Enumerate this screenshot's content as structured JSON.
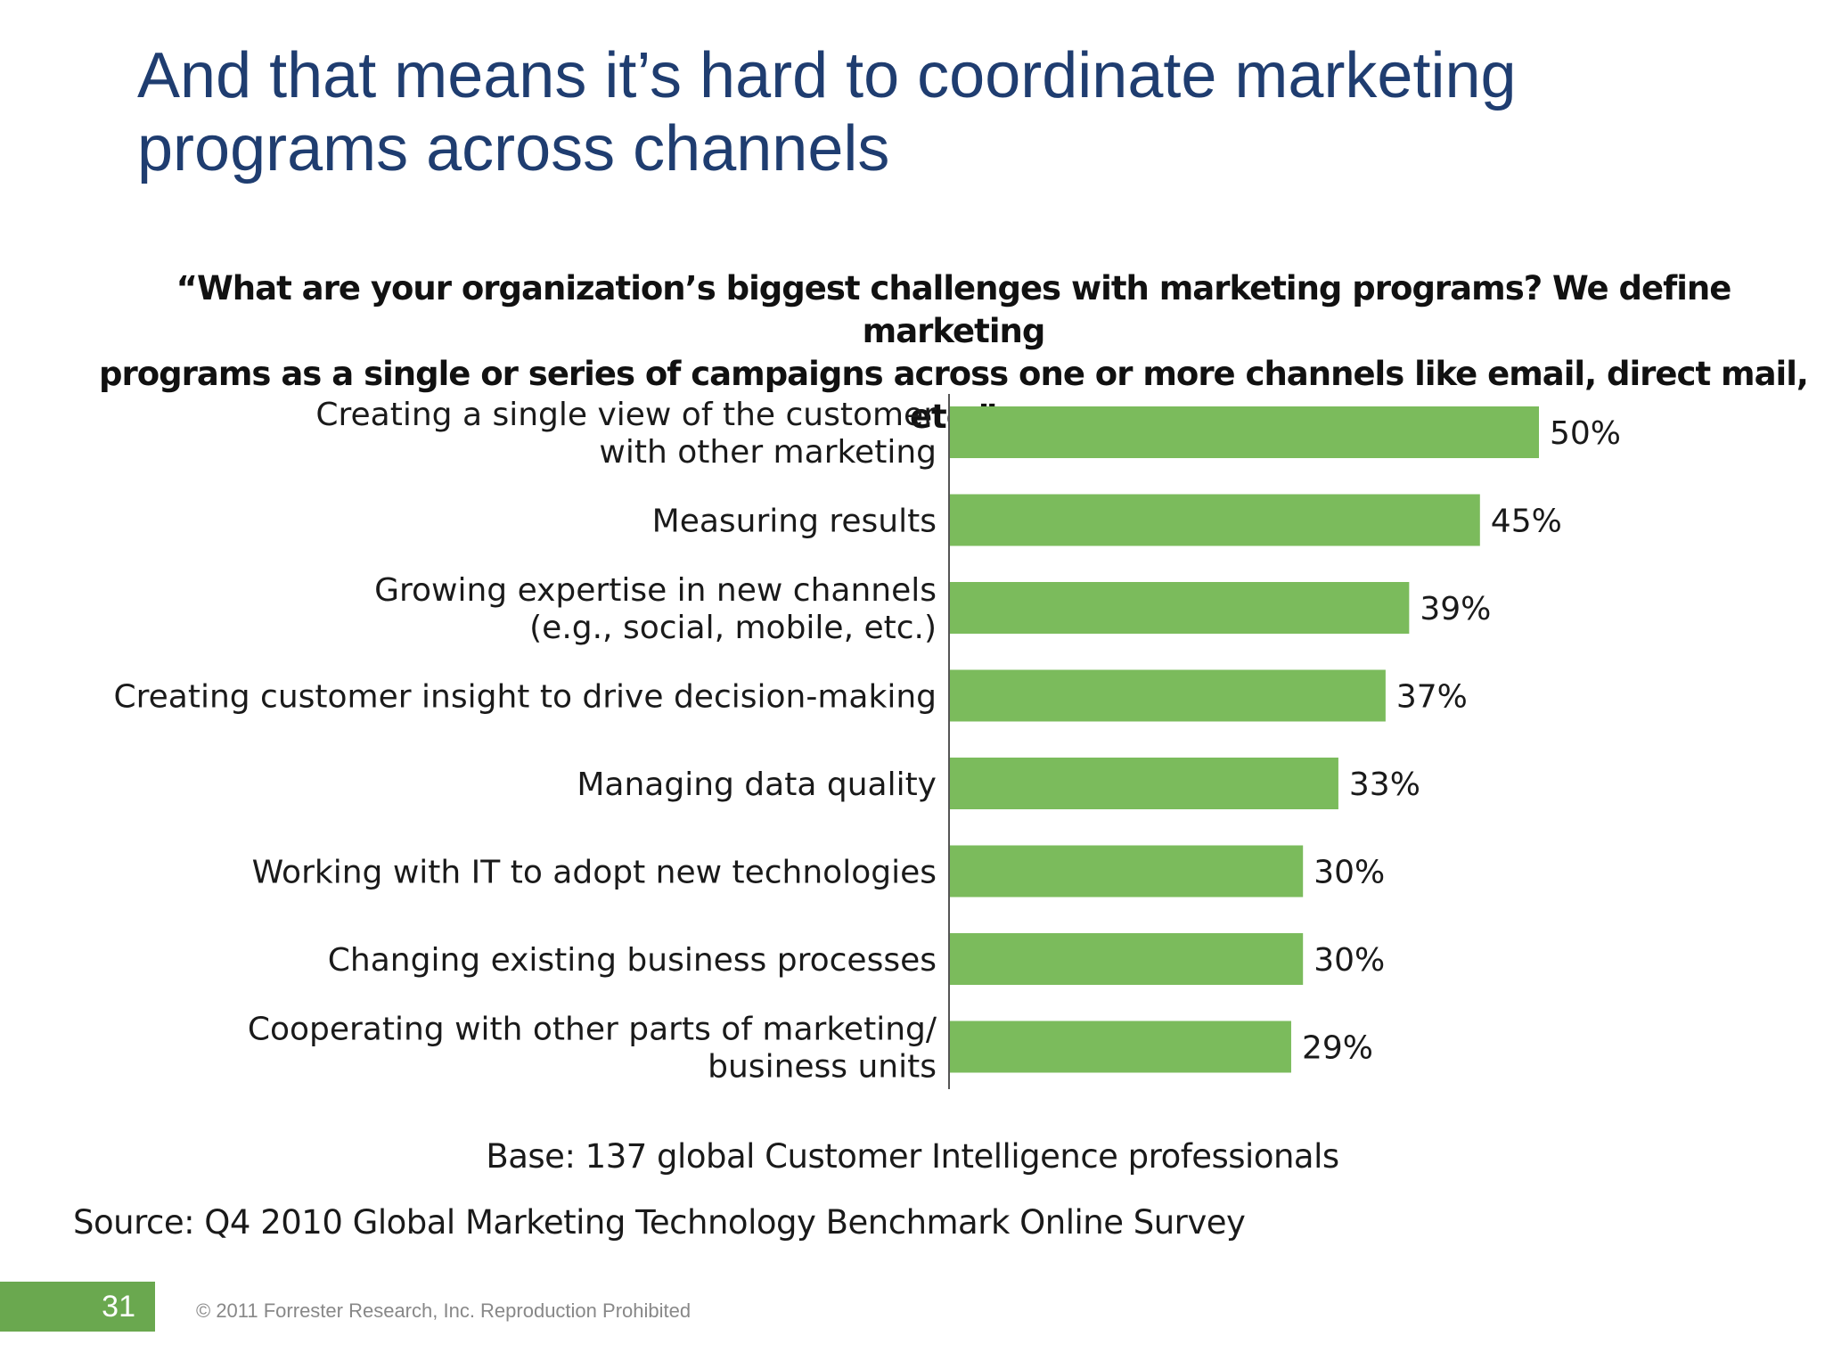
{
  "slide": {
    "title_lines": [
      "And that means it’s hard to coordinate marketing",
      "programs across channels"
    ],
    "page_number": "31",
    "copyright": "© 2011 Forrester Research, Inc. Reproduction Prohibited"
  },
  "chart_data": {
    "type": "bar",
    "orientation": "horizontal",
    "title_lines": [
      "“What are your organization’s biggest challenges with marketing programs? We define marketing",
      "programs as a single or series of campaigns across one or more channels like email, direct mail, etc.”"
    ],
    "categories": [
      [
        "Creating a single view of the customer",
        "with other marketing"
      ],
      [
        "Measuring results"
      ],
      [
        "Growing expertise in new channels",
        "(e.g., social, mobile, etc.)"
      ],
      [
        "Creating customer insight to drive decision-making"
      ],
      [
        "Managing data quality"
      ],
      [
        "Working with IT to adopt new technologies"
      ],
      [
        "Changing existing business processes"
      ],
      [
        "Cooperating with other parts of marketing/",
        "business units"
      ]
    ],
    "values": [
      50,
      45,
      39,
      37,
      33,
      30,
      30,
      29
    ],
    "value_labels": [
      "50%",
      "45%",
      "39%",
      "37%",
      "33%",
      "30%",
      "30%",
      "29%"
    ],
    "xlim": [
      0,
      50
    ],
    "bar_color": "#7bbb5c",
    "grid": false,
    "legend": "none",
    "notes": {
      "base": "Base: 137 global Customer Intelligence professionals",
      "source": "Source: Q4 2010 Global Marketing Technology Benchmark Online Survey"
    }
  }
}
